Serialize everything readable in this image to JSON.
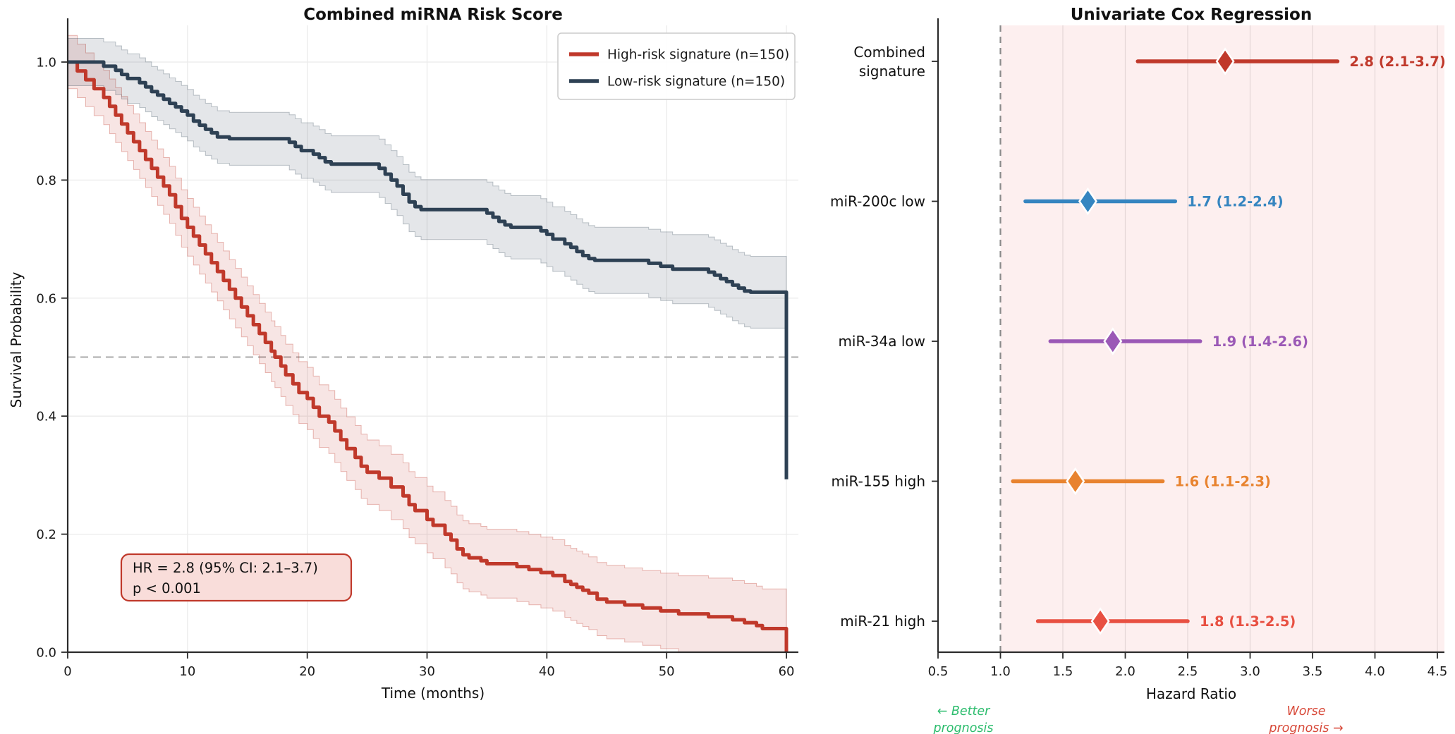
{
  "chart_data": [
    {
      "type": "line",
      "subtype": "kaplan-meier-survival",
      "title": "Combined miRNA Risk Score",
      "xlabel": "Time (months)",
      "ylabel": "Survival Probability",
      "xlim": [
        0,
        61
      ],
      "ylim": [
        0,
        1.05
      ],
      "xticks": [
        0,
        10,
        20,
        30,
        40,
        50,
        60
      ],
      "yticks": [
        0.0,
        0.2,
        0.4,
        0.6,
        0.8,
        1.0
      ],
      "grid": true,
      "median_reference_y": 0.5,
      "legend": {
        "position": "upper right"
      },
      "annotation_box": {
        "lines": [
          "HR = 2.8 (95% CI: 2.1–3.7)",
          "p < 0.001"
        ],
        "fill_color": "#f9ddda",
        "border_color": "#c0392b"
      },
      "series": [
        {
          "name": "High-risk signature (n=150)",
          "color": "#c0392b",
          "ci_fill": "rgba(192,57,43,0.13)",
          "ci_edge": "rgba(192,57,43,0.35)",
          "end_time": 60,
          "final_drop_to": 0.0,
          "steps": [
            [
              0,
              1.0
            ],
            [
              0.8,
              0.985
            ],
            [
              1.5,
              0.97
            ],
            [
              2.2,
              0.955
            ],
            [
              3,
              0.94
            ],
            [
              3.5,
              0.925
            ],
            [
              4,
              0.91
            ],
            [
              4.5,
              0.895
            ],
            [
              5,
              0.88
            ],
            [
              5.5,
              0.865
            ],
            [
              6,
              0.85
            ],
            [
              6.5,
              0.835
            ],
            [
              7,
              0.82
            ],
            [
              7.5,
              0.805
            ],
            [
              8,
              0.79
            ],
            [
              8.5,
              0.775
            ],
            [
              9,
              0.755
            ],
            [
              9.5,
              0.735
            ],
            [
              10,
              0.72
            ],
            [
              10.5,
              0.705
            ],
            [
              11,
              0.69
            ],
            [
              11.5,
              0.675
            ],
            [
              12,
              0.66
            ],
            [
              12.5,
              0.645
            ],
            [
              13,
              0.63
            ],
            [
              13.5,
              0.615
            ],
            [
              14,
              0.6
            ],
            [
              14.5,
              0.585
            ],
            [
              15,
              0.57
            ],
            [
              15.5,
              0.555
            ],
            [
              16,
              0.54
            ],
            [
              16.5,
              0.525
            ],
            [
              17,
              0.51
            ],
            [
              17.3,
              0.5
            ],
            [
              17.8,
              0.485
            ],
            [
              18.2,
              0.47
            ],
            [
              18.8,
              0.455
            ],
            [
              19.3,
              0.44
            ],
            [
              20,
              0.43
            ],
            [
              20.5,
              0.415
            ],
            [
              21,
              0.4
            ],
            [
              21.8,
              0.39
            ],
            [
              22.3,
              0.375
            ],
            [
              22.8,
              0.36
            ],
            [
              23.3,
              0.345
            ],
            [
              24,
              0.33
            ],
            [
              24.5,
              0.315
            ],
            [
              25,
              0.305
            ],
            [
              26,
              0.295
            ],
            [
              27,
              0.28
            ],
            [
              28,
              0.265
            ],
            [
              28.5,
              0.25
            ],
            [
              29,
              0.24
            ],
            [
              30,
              0.225
            ],
            [
              30.5,
              0.215
            ],
            [
              31.5,
              0.2
            ],
            [
              32,
              0.19
            ],
            [
              32.5,
              0.175
            ],
            [
              33,
              0.165
            ],
            [
              33.5,
              0.16
            ],
            [
              34.5,
              0.155
            ],
            [
              35,
              0.15
            ],
            [
              37.5,
              0.145
            ],
            [
              38.5,
              0.14
            ],
            [
              39.5,
              0.135
            ],
            [
              40.5,
              0.13
            ],
            [
              41.5,
              0.12
            ],
            [
              42,
              0.115
            ],
            [
              42.5,
              0.11
            ],
            [
              43,
              0.105
            ],
            [
              43.5,
              0.1
            ],
            [
              44.2,
              0.09
            ],
            [
              45,
              0.085
            ],
            [
              46.5,
              0.08
            ],
            [
              48,
              0.075
            ],
            [
              49.5,
              0.07
            ],
            [
              51,
              0.065
            ],
            [
              53.5,
              0.06
            ],
            [
              55.5,
              0.055
            ],
            [
              56.5,
              0.05
            ],
            [
              57.5,
              0.045
            ],
            [
              58,
              0.04
            ]
          ]
        },
        {
          "name": "Low-risk signature (n=150)",
          "color": "#2e4154",
          "ci_fill": "rgba(46,65,84,0.13)",
          "ci_edge": "rgba(46,65,84,0.30)",
          "end_time": 60,
          "final_drop_to": 0.293,
          "steps": [
            [
              0,
              1.0
            ],
            [
              3,
              0.993
            ],
            [
              4,
              0.986
            ],
            [
              4.5,
              0.979
            ],
            [
              5,
              0.972
            ],
            [
              6,
              0.965
            ],
            [
              6.5,
              0.958
            ],
            [
              7,
              0.95
            ],
            [
              7.5,
              0.944
            ],
            [
              8,
              0.937
            ],
            [
              8.5,
              0.93
            ],
            [
              9,
              0.924
            ],
            [
              9.5,
              0.917
            ],
            [
              10,
              0.91
            ],
            [
              10.5,
              0.9
            ],
            [
              11,
              0.893
            ],
            [
              11.5,
              0.886
            ],
            [
              12,
              0.88
            ],
            [
              12.5,
              0.873
            ],
            [
              13.5,
              0.87
            ],
            [
              18.5,
              0.864
            ],
            [
              19,
              0.857
            ],
            [
              19.5,
              0.85
            ],
            [
              20.5,
              0.844
            ],
            [
              21,
              0.838
            ],
            [
              21.5,
              0.831
            ],
            [
              22,
              0.827
            ],
            [
              26,
              0.82
            ],
            [
              26.5,
              0.81
            ],
            [
              27,
              0.8
            ],
            [
              27.5,
              0.79
            ],
            [
              28,
              0.776
            ],
            [
              28.5,
              0.763
            ],
            [
              29,
              0.755
            ],
            [
              29.5,
              0.75
            ],
            [
              35,
              0.744
            ],
            [
              35.5,
              0.737
            ],
            [
              36,
              0.73
            ],
            [
              36.5,
              0.724
            ],
            [
              37,
              0.72
            ],
            [
              39.5,
              0.714
            ],
            [
              40,
              0.708
            ],
            [
              40.5,
              0.7
            ],
            [
              41.5,
              0.692
            ],
            [
              42,
              0.686
            ],
            [
              42.5,
              0.679
            ],
            [
              43,
              0.672
            ],
            [
              43.5,
              0.667
            ],
            [
              44,
              0.664
            ],
            [
              48.5,
              0.659
            ],
            [
              49.5,
              0.654
            ],
            [
              50.5,
              0.649
            ],
            [
              53.5,
              0.644
            ],
            [
              54,
              0.639
            ],
            [
              54.5,
              0.633
            ],
            [
              55,
              0.628
            ],
            [
              55.5,
              0.622
            ],
            [
              56,
              0.617
            ],
            [
              56.5,
              0.612
            ],
            [
              57,
              0.61
            ]
          ]
        }
      ]
    },
    {
      "type": "scatter",
      "subtype": "forest-plot",
      "title": "Univariate Cox Regression",
      "xlabel": "Hazard Ratio",
      "xlim": [
        0.5,
        4.56
      ],
      "xticks": [
        0.5,
        1.0,
        1.5,
        2.0,
        2.5,
        3.0,
        3.5,
        4.0,
        4.5
      ],
      "reference_line_x": 1.0,
      "shaded_region": {
        "from": 1.0,
        "to": 4.56,
        "color": "rgba(240,128,128,0.13)"
      },
      "rows": [
        {
          "label": "Combined signature",
          "label_lines": [
            "Combined",
            "signature"
          ],
          "hr": 2.8,
          "ci_low": 2.1,
          "ci_high": 3.7,
          "value_text": "2.8 (2.1-3.7)",
          "color": "#c0392b"
        },
        {
          "label": "miR-200c low",
          "label_lines": [
            "miR-200c low"
          ],
          "hr": 1.7,
          "ci_low": 1.2,
          "ci_high": 2.4,
          "value_text": "1.7 (1.2-2.4)",
          "color": "#3585c0"
        },
        {
          "label": "miR-34a low",
          "label_lines": [
            "miR-34a low"
          ],
          "hr": 1.9,
          "ci_low": 1.4,
          "ci_high": 2.6,
          "value_text": "1.9 (1.4-2.6)",
          "color": "#9b59b6"
        },
        {
          "label": "miR-155 high",
          "label_lines": [
            "miR-155 high"
          ],
          "hr": 1.6,
          "ci_low": 1.1,
          "ci_high": 2.3,
          "value_text": "1.6 (1.1-2.3)",
          "color": "#e8832f"
        },
        {
          "label": "miR-21 high",
          "label_lines": [
            "miR-21 high"
          ],
          "hr": 1.8,
          "ci_low": 1.3,
          "ci_high": 2.5,
          "value_text": "1.8 (1.3-2.5)",
          "color": "#e85042"
        }
      ],
      "prognosis_notes": {
        "better": {
          "lines": [
            "← Better",
            "prognosis"
          ],
          "color": "#2dbd6e"
        },
        "worse": {
          "lines": [
            "Worse",
            "prognosis →"
          ],
          "color": "#d84a3a"
        }
      }
    }
  ]
}
